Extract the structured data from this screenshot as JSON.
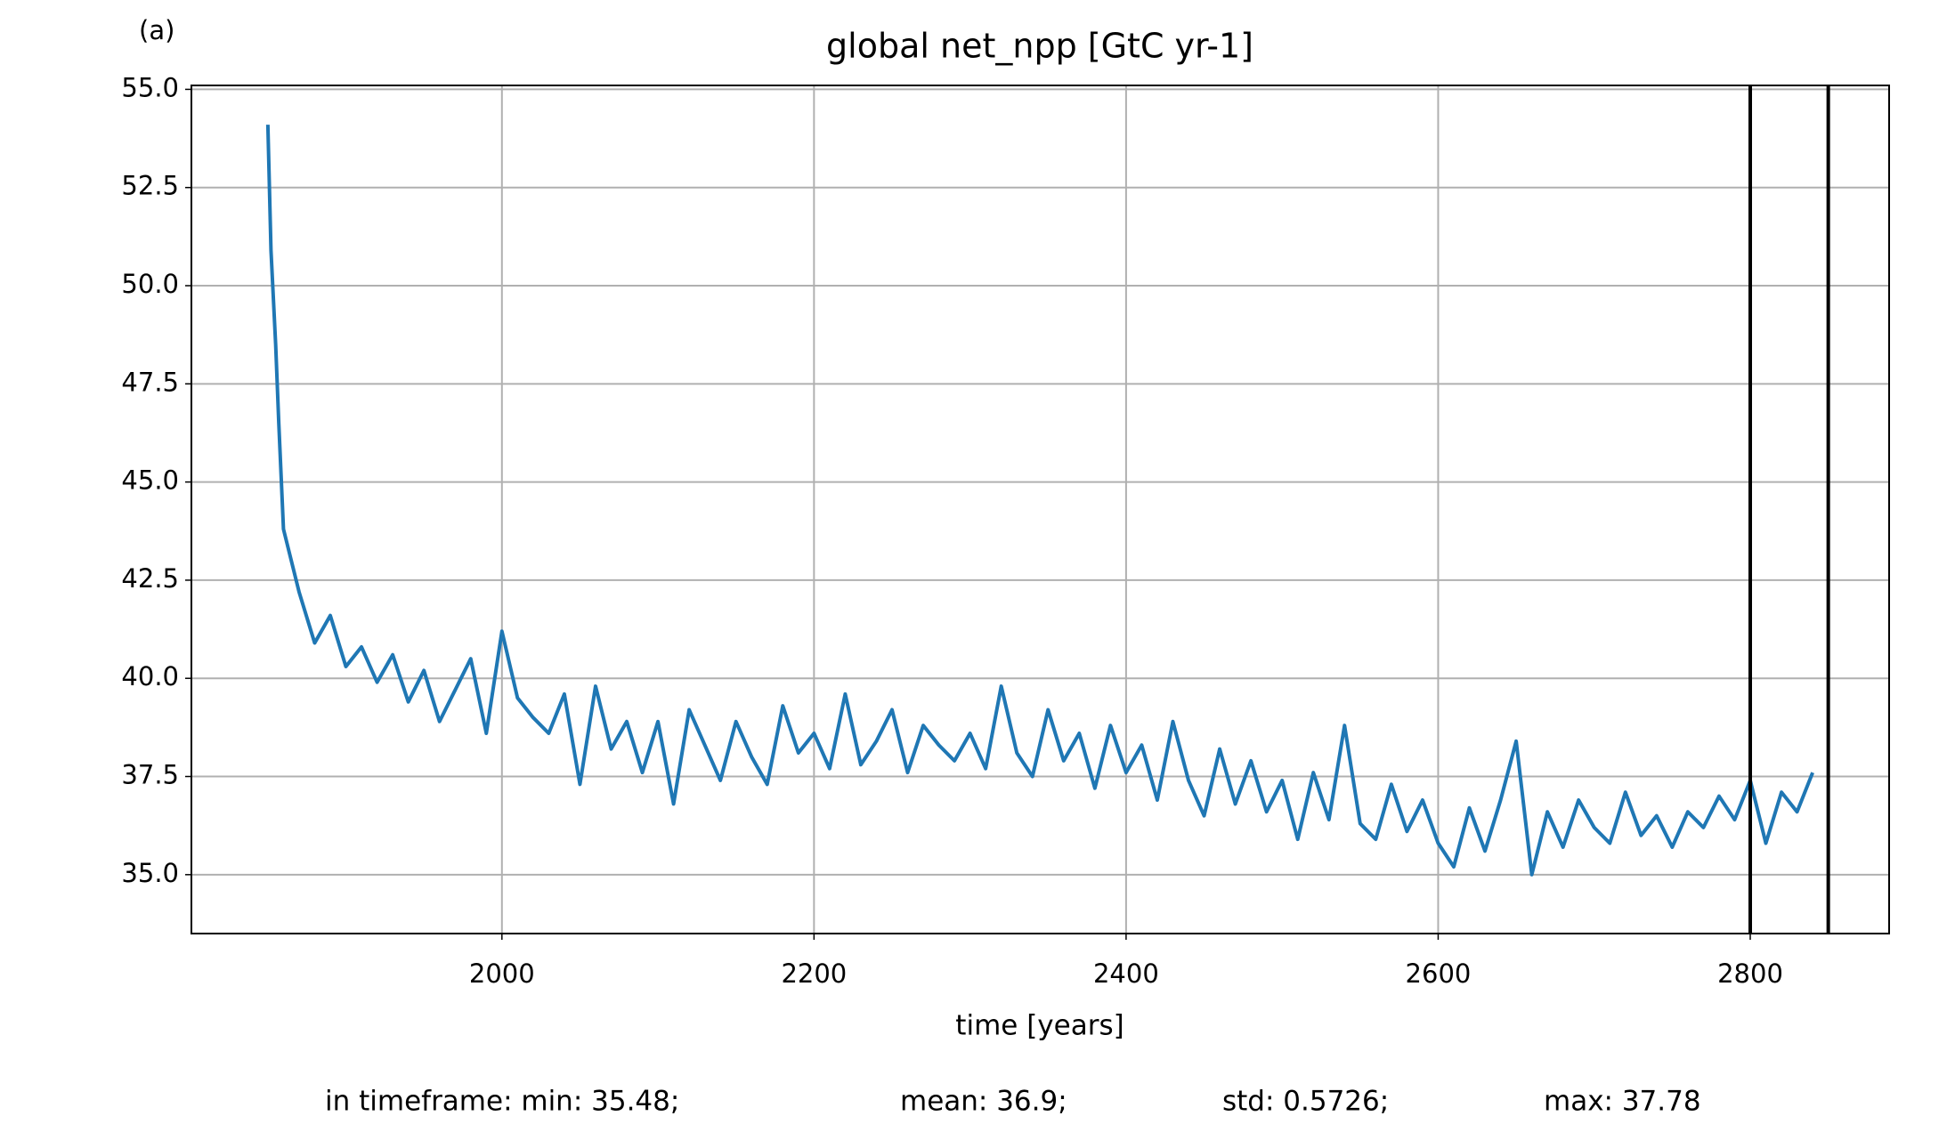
{
  "chart_data": {
    "type": "line",
    "panel_label": "(a)",
    "title": "global net_npp [GtC yr-1]",
    "x_label": "time [years]",
    "stats": [
      "in timeframe: min: 35.48;",
      "mean: 36.9;",
      "std: 0.5726;",
      "max: 37.78"
    ],
    "x": [
      1850,
      1852,
      1855,
      1857,
      1860,
      1870,
      1880,
      1890,
      1900,
      1910,
      1920,
      1930,
      1940,
      1950,
      1960,
      1970,
      1980,
      1990,
      2000,
      2010,
      2020,
      2030,
      2040,
      2050,
      2060,
      2070,
      2080,
      2090,
      2100,
      2110,
      2120,
      2130,
      2140,
      2150,
      2160,
      2170,
      2180,
      2190,
      2200,
      2210,
      2220,
      2230,
      2240,
      2250,
      2260,
      2270,
      2280,
      2290,
      2300,
      2310,
      2320,
      2330,
      2340,
      2350,
      2360,
      2370,
      2380,
      2390,
      2400,
      2410,
      2420,
      2430,
      2440,
      2450,
      2460,
      2470,
      2480,
      2490,
      2500,
      2510,
      2520,
      2530,
      2540,
      2550,
      2560,
      2570,
      2580,
      2590,
      2600,
      2610,
      2620,
      2630,
      2640,
      2650,
      2660,
      2670,
      2680,
      2690,
      2700,
      2710,
      2720,
      2730,
      2740,
      2750,
      2760,
      2770,
      2780,
      2790,
      2800,
      2810,
      2820,
      2830,
      2840
    ],
    "series": [
      {
        "name": "net_npp",
        "color": "#1f77b4",
        "values": [
          54.1,
          50.9,
          48.5,
          46.5,
          43.8,
          42.2,
          40.9,
          41.6,
          40.3,
          40.8,
          39.9,
          40.6,
          39.4,
          40.2,
          38.9,
          39.7,
          40.5,
          38.6,
          41.2,
          39.5,
          39.0,
          38.6,
          39.6,
          37.3,
          39.8,
          38.2,
          38.9,
          37.6,
          38.9,
          36.8,
          39.2,
          38.3,
          37.4,
          38.9,
          38.0,
          37.3,
          39.3,
          38.1,
          38.6,
          37.7,
          39.6,
          37.8,
          38.4,
          39.2,
          37.6,
          38.8,
          38.3,
          37.9,
          38.6,
          37.7,
          39.8,
          38.1,
          37.5,
          39.2,
          37.9,
          38.6,
          37.2,
          38.8,
          37.6,
          38.3,
          36.9,
          38.9,
          37.4,
          36.5,
          38.2,
          36.8,
          37.9,
          36.6,
          37.4,
          35.9,
          37.6,
          36.4,
          38.8,
          36.3,
          35.9,
          37.3,
          36.1,
          36.9,
          35.8,
          35.2,
          36.7,
          35.6,
          36.9,
          38.4,
          35.0,
          36.6,
          35.7,
          36.9,
          36.2,
          35.8,
          37.1,
          36.0,
          36.5,
          35.7,
          36.6,
          36.2,
          37.0,
          36.4,
          37.4,
          35.8,
          37.1,
          36.6,
          37.6
        ]
      }
    ],
    "vlines": [
      2800,
      2850
    ],
    "vline_color": "#000000",
    "xlim": [
      1801,
      2889
    ],
    "xticks": [
      2000,
      2200,
      2400,
      2600,
      2800
    ],
    "ylim": [
      33.5,
      55.1
    ],
    "yticks": [
      {
        "value": 35,
        "label": "35.0"
      },
      37.5,
      {
        "value": 40,
        "label": "40.0"
      },
      42.5,
      {
        "value": 45,
        "label": "45.0"
      },
      47.5,
      {
        "value": 50,
        "label": "50.0"
      },
      52.5,
      {
        "value": 55,
        "label": "55.0"
      }
    ],
    "grid": true
  }
}
